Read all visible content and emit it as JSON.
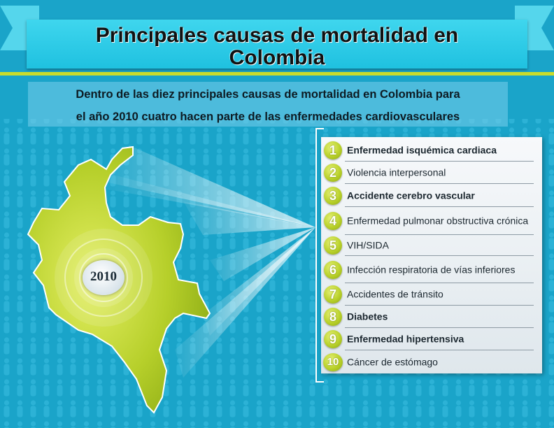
{
  "header": {
    "title_line_1": "Principales causas de mortalidad en",
    "title_line_2": "Colombia"
  },
  "subtitle": {
    "line_1": "Dentro de las diez principales causas de mortalidad en Colombia para",
    "line_2": "el año 2010 cuatro hacen parte de las enfermedades cardiovasculares"
  },
  "map": {
    "year": "2010",
    "country_color": "#b6cf2a",
    "highlight_color": "#ffffff"
  },
  "causes": [
    {
      "rank": "1",
      "label": "Enfermedad isquémica cardiaca",
      "bold": true
    },
    {
      "rank": "2",
      "label": "Violencia interpersonal",
      "bold": false
    },
    {
      "rank": "3",
      "label": "Accidente cerebro vascular",
      "bold": true
    },
    {
      "rank": "4",
      "label": "Enfermedad pulmonar obstructiva crónica",
      "bold": false
    },
    {
      "rank": "5",
      "label": "VIH/SIDA",
      "bold": false
    },
    {
      "rank": "6",
      "label": "Infección respiratoria de vías inferiores",
      "bold": false
    },
    {
      "rank": "7",
      "label": "Accidentes de tránsito",
      "bold": false
    },
    {
      "rank": "8",
      "label": "Diabetes",
      "bold": true
    },
    {
      "rank": "9",
      "label": "Enfermedad hipertensiva",
      "bold": true
    },
    {
      "rank": "10",
      "label": "Cáncer de estómago",
      "bold": false
    }
  ],
  "colors": {
    "background": "#1aa4c9",
    "banner": "#2ccbe6",
    "accent_green": "#c9dc2c",
    "badge_green": "#b9d12a"
  }
}
